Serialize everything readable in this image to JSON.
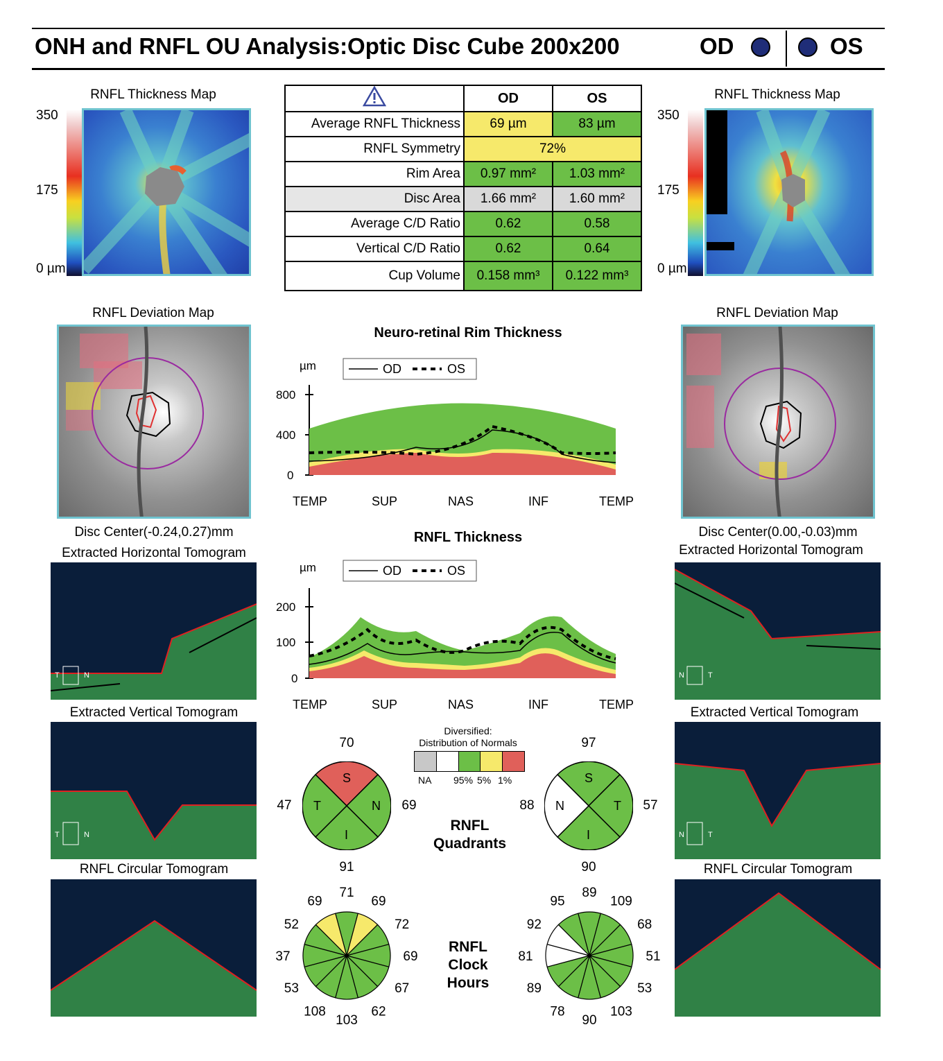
{
  "header": {
    "title": "ONH and RNFL OU Analysis:Optic Disc Cube 200x200",
    "od": "OD",
    "os": "OS"
  },
  "left": {
    "thickness_map_title": "RNFL Thickness Map",
    "scale_max": "350",
    "scale_mid": "175",
    "scale_min": "0 µm",
    "deviation_map_title": "RNFL Deviation Map",
    "disc_center": "Disc Center(-0.24,0.27)mm",
    "horiz_tomo_title": "Extracted Horizontal Tomogram",
    "vert_tomo_title": "Extracted Vertical Tomogram",
    "circ_tomo_title": "RNFL Circular Tomogram",
    "horiz_orient": {
      "left": "T",
      "right": "N"
    },
    "vert_orient": {
      "left": "T",
      "right": "N"
    }
  },
  "right": {
    "thickness_map_title": "RNFL Thickness Map",
    "scale_max": "350",
    "scale_mid": "175",
    "scale_min": "0 µm",
    "deviation_map_title": "RNFL Deviation Map",
    "disc_center": "Disc Center(0.00,-0.03)mm",
    "horiz_tomo_title": "Extracted Horizontal Tomogram",
    "vert_tomo_title": "Extracted Vertical Tomogram",
    "circ_tomo_title": "RNFL Circular Tomogram",
    "horiz_orient": {
      "left": "N",
      "right": "T"
    },
    "vert_orient": {
      "left": "N",
      "right": "T"
    }
  },
  "table": {
    "col_od": "OD",
    "col_os": "OS",
    "rows": [
      {
        "name": "Average RNFL Thickness",
        "od": "69 µm",
        "os": "83 µm",
        "od_color": "y",
        "os_color": "g"
      },
      {
        "name": "RNFL Symmetry",
        "od": "72%",
        "os": "",
        "od_color": "y",
        "os_color": "y"
      },
      {
        "name": "Rim Area",
        "od": "0.97 mm²",
        "os": "1.03 mm²",
        "od_color": "g",
        "os_color": "g"
      },
      {
        "name": "Disc Area",
        "od": "1.66 mm²",
        "os": "1.60 mm²",
        "od_color": "gr",
        "os_color": "gr"
      },
      {
        "name": "Average C/D Ratio",
        "od": "0.62",
        "os": "0.58",
        "od_color": "g",
        "os_color": "g"
      },
      {
        "name": "Vertical C/D Ratio",
        "od": "0.62",
        "os": "0.64",
        "od_color": "g",
        "os_color": "g"
      },
      {
        "name": "Cup Volume",
        "od": "0.158 mm³",
        "os": "0.122 mm³",
        "od_color": "g",
        "os_color": "g"
      }
    ]
  },
  "colors": {
    "normal_green": "#6cbf47",
    "borderline_yellow": "#f6e96b",
    "abnormal_red": "#e0605a",
    "na_gray": "#d0d0d0",
    "od_line": "#000000",
    "os_line": "#000000"
  },
  "rim_chart": {
    "title": "Neuro-retinal Rim Thickness",
    "unit": "µm",
    "legend_od": "OD",
    "legend_os": "OS",
    "yticks": [
      "800",
      "400",
      "0"
    ],
    "xticks": [
      "TEMP",
      "SUP",
      "NAS",
      "INF",
      "TEMP"
    ]
  },
  "rnfl_chart": {
    "title": "RNFL Thickness",
    "unit": "µm",
    "legend_od": "OD",
    "legend_os": "OS",
    "yticks": [
      "200",
      "100",
      "0"
    ],
    "xticks": [
      "TEMP",
      "SUP",
      "NAS",
      "INF",
      "TEMP"
    ]
  },
  "legend": {
    "title1": "Diversified:",
    "title2": "Distribution of Normals",
    "labels": [
      "NA",
      "95%",
      "5%",
      "1%"
    ]
  },
  "quadrants": {
    "label1": "RNFL",
    "label2": "Quadrants",
    "od": {
      "top": "70",
      "left": "47",
      "right": "69",
      "bottom": "91",
      "s": "S",
      "t": "T",
      "n": "N",
      "i": "I"
    },
    "os": {
      "top": "97",
      "left": "88",
      "right": "57",
      "bottom": "90",
      "s": "S",
      "t": "T",
      "n": "N",
      "i": "I"
    }
  },
  "clock": {
    "label1": "RNFL",
    "label2": "Clock",
    "label3": "Hours",
    "od": [
      "71",
      "69",
      "72",
      "69",
      "67",
      "62",
      "103",
      "108",
      "53",
      "37",
      "52",
      "69"
    ],
    "os": [
      "89",
      "109",
      "68",
      "51",
      "53",
      "103",
      "90",
      "78",
      "89",
      "81",
      "92",
      "95"
    ]
  }
}
